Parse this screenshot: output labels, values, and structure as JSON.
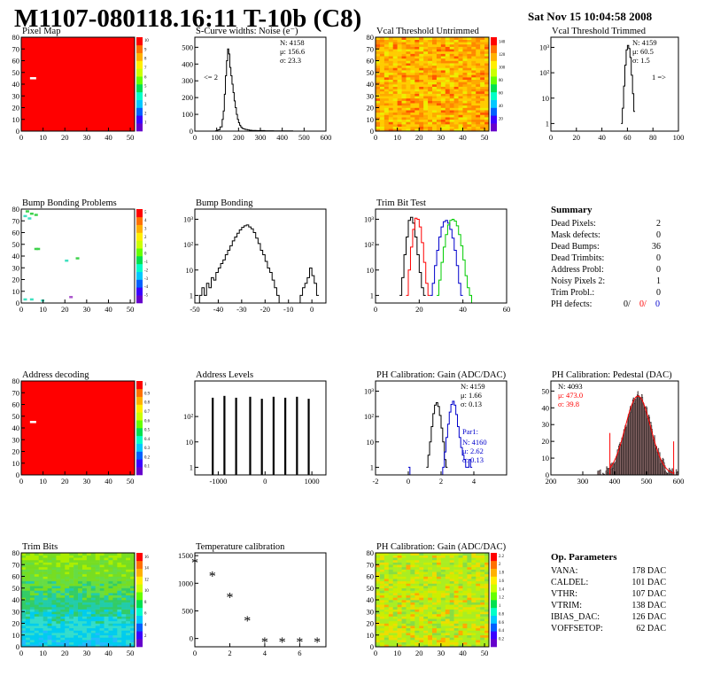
{
  "header": {
    "title": "M1107-080118.16:11 T-10b (C8)",
    "timestamp": "Sat Nov 15 10:04:58 2008"
  },
  "chart_data": [
    {
      "id": "pixel-map",
      "type": "heatmap",
      "title": "Pixel Map",
      "fill": "uniform-red",
      "x_ticks": [
        "0",
        "10",
        "20",
        "30",
        "40",
        "50"
      ],
      "y_ticks": [
        "0",
        "10",
        "20",
        "30",
        "40",
        "50",
        "60",
        "70",
        "80"
      ],
      "xlim": [
        0,
        52
      ],
      "ylim": [
        0,
        80
      ],
      "palette_ticks": [
        "1",
        "2",
        "3",
        "4",
        "5",
        "6",
        "7",
        "8",
        "9",
        "10"
      ],
      "marks": [
        {
          "x": 4,
          "y": 45,
          "color": "white",
          "note": "dead pixel"
        }
      ]
    },
    {
      "id": "scurve-widths",
      "type": "line",
      "title": "S-Curve widths: Noise (e⁻)",
      "x_ticks": [
        "0",
        "100",
        "200",
        "300",
        "400",
        "500",
        "600"
      ],
      "y_ticks": [
        "0",
        "100",
        "200",
        "300",
        "400",
        "500"
      ],
      "xlim": [
        0,
        600
      ],
      "ylim": [
        0,
        560
      ],
      "stats": {
        "N": "N: 4158",
        "mu": "μ: 156.6",
        "sigma": "σ: 23.3"
      },
      "note": "<= 2",
      "x": [
        80,
        95,
        105,
        115,
        125,
        130,
        135,
        140,
        145,
        150,
        155,
        160,
        165,
        170,
        175,
        180,
        185,
        190,
        195,
        200,
        205,
        210,
        215,
        220,
        230,
        240,
        250,
        260,
        270,
        280,
        300,
        320,
        340,
        360,
        380,
        400,
        420,
        450
      ],
      "values": [
        0,
        2,
        8,
        25,
        70,
        120,
        220,
        330,
        420,
        490,
        460,
        380,
        330,
        280,
        230,
        180,
        140,
        100,
        70,
        50,
        35,
        25,
        18,
        14,
        10,
        7,
        5,
        4,
        4,
        3,
        3,
        2,
        2,
        1,
        1,
        1,
        1,
        0
      ]
    },
    {
      "id": "vcal-untrimmed",
      "type": "heatmap",
      "title": "Vcal Threshold Untrimmed",
      "fill": "noisy-yellow-orange",
      "x_ticks": [
        "0",
        "10",
        "20",
        "30",
        "40",
        "50"
      ],
      "y_ticks": [
        "0",
        "10",
        "20",
        "30",
        "40",
        "50",
        "60",
        "70",
        "80"
      ],
      "xlim": [
        0,
        52
      ],
      "ylim": [
        0,
        80
      ],
      "palette_ticks": [
        "20",
        "40",
        "60",
        "80",
        "100",
        "120",
        "140"
      ]
    },
    {
      "id": "vcal-trimmed",
      "type": "line",
      "title": "Vcal Threshold Trimmed",
      "log_y": true,
      "x_ticks": [
        "0",
        "20",
        "40",
        "60",
        "80",
        "100"
      ],
      "y_ticks": [
        "1",
        "10",
        "10²",
        "10³"
      ],
      "xlim": [
        0,
        100
      ],
      "stats": {
        "N": "N: 4159",
        "mu": "μ: 60.5",
        "sigma": "σ:  1.5"
      },
      "note": "1 =>",
      "x": [
        55,
        56,
        57,
        58,
        59,
        60,
        61,
        62,
        63,
        64,
        65,
        66
      ],
      "values": [
        1,
        4,
        30,
        200,
        800,
        1200,
        900,
        400,
        80,
        15,
        3,
        1
      ]
    },
    {
      "id": "bump-problems",
      "type": "heatmap",
      "title": "Bump Bonding Problems",
      "fill": "white-sparse",
      "x_ticks": [
        "0",
        "10",
        "20",
        "30",
        "40",
        "50"
      ],
      "y_ticks": [
        "0",
        "10",
        "20",
        "30",
        "40",
        "50",
        "60",
        "70",
        "80"
      ],
      "xlim": [
        0,
        52
      ],
      "ylim": [
        0,
        80
      ],
      "palette_ticks": [
        "-5",
        "-4",
        "-3",
        "-2",
        "-1",
        "0",
        "1",
        "2",
        "3",
        "4",
        "5"
      ],
      "marks": [
        {
          "x": 2,
          "y": 78,
          "color": "#3fd24d"
        },
        {
          "x": 4,
          "y": 76,
          "color": "#3fd24d"
        },
        {
          "x": 6,
          "y": 75,
          "color": "#3fd24d"
        },
        {
          "x": 3,
          "y": 72,
          "color": "#40e0c0"
        },
        {
          "x": 1,
          "y": 74,
          "color": "#40e0c0"
        },
        {
          "x": 6,
          "y": 46,
          "color": "#3fd24d"
        },
        {
          "x": 7,
          "y": 46,
          "color": "#3fd24d"
        },
        {
          "x": 20,
          "y": 36,
          "color": "#40e0c0"
        },
        {
          "x": 25,
          "y": 38,
          "color": "#3fd24d"
        },
        {
          "x": 1,
          "y": 3,
          "color": "#40e0c0"
        },
        {
          "x": 4,
          "y": 3,
          "color": "#40e0c0"
        },
        {
          "x": 9,
          "y": 2,
          "color": "#40e0c0"
        },
        {
          "x": 22,
          "y": 5,
          "color": "#aa55cc"
        }
      ]
    },
    {
      "id": "bump-bonding",
      "type": "line",
      "title": "Bump Bonding",
      "log_y": true,
      "x_ticks": [
        "-50",
        "-40",
        "-30",
        "-20",
        "-10",
        "0"
      ],
      "y_ticks": [
        "1",
        "10",
        "10²",
        "10³"
      ],
      "xlim": [
        -50,
        6
      ],
      "x": [
        -50,
        -49,
        -48,
        -47,
        -46,
        -45,
        -44,
        -43,
        -42,
        -41,
        -40,
        -39,
        -38,
        -37,
        -36,
        -35,
        -34,
        -33,
        -32,
        -31,
        -30,
        -29,
        -28,
        -27,
        -26,
        -25,
        -24,
        -23,
        -22,
        -21,
        -20,
        -19,
        -18,
        -17,
        -16,
        -15,
        -14,
        -13,
        -12,
        -11,
        -10,
        -9,
        -8,
        -7,
        -6,
        -5,
        -4,
        -3,
        -2,
        -1,
        0,
        1,
        2,
        3
      ],
      "values": [
        0,
        0,
        1,
        2,
        1,
        3,
        2,
        5,
        4,
        8,
        12,
        18,
        25,
        40,
        60,
        90,
        140,
        200,
        280,
        380,
        480,
        550,
        600,
        500,
        420,
        300,
        180,
        110,
        60,
        40,
        22,
        12,
        8,
        4,
        2,
        1,
        0,
        0,
        0,
        0,
        0,
        0,
        0,
        0,
        0,
        1,
        2,
        3,
        5,
        12,
        6,
        3,
        1,
        0
      ]
    },
    {
      "id": "trim-bit-test",
      "type": "line",
      "title": "Trim Bit Test",
      "log_y": true,
      "x_ticks": [
        "0",
        "20",
        "40",
        "60"
      ],
      "y_ticks": [
        "1",
        "10",
        "10²",
        "10³"
      ],
      "xlim": [
        0,
        60
      ],
      "series": [
        {
          "color": "#000000",
          "x": [
            11,
            12,
            13,
            14,
            15,
            16,
            17,
            18,
            19,
            20,
            21,
            22
          ],
          "values": [
            1,
            5,
            40,
            200,
            900,
            1200,
            700,
            200,
            40,
            8,
            2,
            1
          ]
        },
        {
          "color": "#ff0000",
          "x": [
            14,
            15,
            16,
            17,
            18,
            19,
            20,
            21,
            22,
            23,
            24
          ],
          "values": [
            1,
            10,
            80,
            400,
            1100,
            1000,
            500,
            120,
            20,
            3,
            1
          ]
        },
        {
          "color": "#0000cc",
          "x": [
            25,
            26,
            27,
            28,
            29,
            30,
            31,
            32,
            33,
            34,
            35,
            36,
            37,
            38,
            39
          ],
          "values": [
            1,
            3,
            15,
            60,
            200,
            500,
            800,
            900,
            700,
            400,
            180,
            60,
            15,
            3,
            1
          ]
        },
        {
          "color": "#00cc00",
          "x": [
            28,
            29,
            30,
            31,
            32,
            33,
            34,
            35,
            36,
            37,
            38,
            39,
            40,
            41,
            42,
            43,
            44
          ],
          "values": [
            1,
            4,
            20,
            80,
            250,
            600,
            900,
            1000,
            850,
            550,
            250,
            90,
            25,
            6,
            2,
            1,
            0
          ]
        }
      ]
    },
    {
      "id": "address-decoding",
      "type": "heatmap",
      "title": "Address decoding",
      "fill": "uniform-red",
      "x_ticks": [
        "0",
        "10",
        "20",
        "30",
        "40",
        "50"
      ],
      "y_ticks": [
        "0",
        "10",
        "20",
        "30",
        "40",
        "50",
        "60",
        "70",
        "80"
      ],
      "xlim": [
        0,
        52
      ],
      "ylim": [
        0,
        80
      ],
      "palette_ticks": [
        "0.1",
        "0.2",
        "0.3",
        "0.4",
        "0.5",
        "0.6",
        "0.7",
        "0.8",
        "0.9",
        "1"
      ],
      "marks": [
        {
          "x": 4,
          "y": 45,
          "color": "white",
          "note": "dead pixel"
        }
      ]
    },
    {
      "id": "address-levels",
      "type": "bar",
      "title": "Address Levels",
      "log_y": true,
      "x_ticks": [
        "-1000",
        "0",
        "1000"
      ],
      "y_ticks": [
        "1",
        "10",
        "10²"
      ],
      "xlim": [
        -1500,
        1300
      ],
      "spikes": [
        {
          "x": -1120,
          "value": 550
        },
        {
          "x": -870,
          "value": 650
        },
        {
          "x": -620,
          "value": 550
        },
        {
          "x": -320,
          "value": 600
        },
        {
          "x": -70,
          "value": 500
        },
        {
          "x": 180,
          "value": 600
        },
        {
          "x": 430,
          "value": 550
        },
        {
          "x": 680,
          "value": 600
        },
        {
          "x": 930,
          "value": 500
        }
      ]
    },
    {
      "id": "ph-gain",
      "type": "line",
      "title": "PH Calibration: Gain (ADC/DAC)",
      "log_y": true,
      "x_ticks": [
        "-2",
        "0",
        "2",
        "4"
      ],
      "y_ticks": [
        "1",
        "10",
        "10²",
        "10³"
      ],
      "xlim": [
        -2,
        6
      ],
      "stats": {
        "N": "N: 4159",
        "mu": "μ: 1.66",
        "sigma": "σ: 0.13"
      },
      "stats2": {
        "label": "Par1:",
        "N": "N: 4160",
        "mu": "μ: 2.62",
        "sigma": "σ: 0.13"
      },
      "series": [
        {
          "color": "#000000",
          "x": [
            1.1,
            1.2,
            1.3,
            1.4,
            1.5,
            1.6,
            1.7,
            1.8,
            1.9,
            2.0,
            2.1,
            2.2,
            2.3
          ],
          "values": [
            1,
            3,
            10,
            40,
            130,
            280,
            350,
            250,
            110,
            35,
            10,
            2,
            1
          ]
        },
        {
          "color": "#0000cc",
          "x": [
            0,
            0.1,
            2.0,
            2.1,
            2.2,
            2.3,
            2.4,
            2.5,
            2.6,
            2.7,
            2.8,
            2.9,
            3.0,
            3.1,
            3.2,
            3.3,
            3.4,
            3.5,
            3.6,
            3.7,
            3.8
          ],
          "values": [
            1,
            0,
            0,
            1,
            4,
            15,
            50,
            150,
            300,
            400,
            280,
            120,
            40,
            15,
            6,
            3,
            2,
            1,
            1,
            2,
            1
          ]
        }
      ]
    },
    {
      "id": "ph-pedestal",
      "type": "bar",
      "title": "PH Calibration: Pedestal (DAC)",
      "x_ticks": [
        "200",
        "300",
        "400",
        "500",
        "600"
      ],
      "y_ticks": [
        "0",
        "10",
        "20",
        "30",
        "40",
        "50"
      ],
      "xlim": [
        200,
        600
      ],
      "ylim": [
        0,
        56
      ],
      "stats": {
        "N": "N: 4093",
        "mu": "μ: 473.0",
        "sigma": "σ: 39.8"
      },
      "gauss": {
        "mu": 473.0,
        "sigma": 39.8,
        "peak": 47,
        "range": [
          340,
          600
        ]
      },
      "fit_range": [
        385,
        585
      ]
    },
    {
      "id": "trim-bits",
      "type": "heatmap",
      "title": "Trim Bits",
      "fill": "gradient-green-cyan",
      "x_ticks": [
        "0",
        "10",
        "20",
        "30",
        "40",
        "50"
      ],
      "y_ticks": [
        "0",
        "10",
        "20",
        "30",
        "40",
        "50",
        "60",
        "70",
        "80"
      ],
      "xlim": [
        0,
        52
      ],
      "ylim": [
        0,
        80
      ],
      "palette_ticks": [
        "2",
        "4",
        "6",
        "8",
        "10",
        "12",
        "14",
        "16"
      ]
    },
    {
      "id": "temperature-calibration",
      "type": "scatter",
      "title": "Temperature calibration",
      "x_ticks": [
        "0",
        "2",
        "4",
        "6"
      ],
      "y_ticks": [
        "0",
        "500",
        "1000",
        "1500"
      ],
      "xlim": [
        0,
        7.5
      ],
      "ylim": [
        -150,
        1550
      ],
      "x": [
        0,
        1,
        2,
        3,
        4,
        5,
        6,
        7
      ],
      "values": [
        1380,
        1140,
        760,
        330,
        -50,
        -50,
        -50,
        -50
      ]
    },
    {
      "id": "ph-gain-map",
      "type": "heatmap",
      "title": "PH Calibration: Gain (ADC/DAC)",
      "fill": "noisy-green-yellow",
      "x_ticks": [
        "0",
        "10",
        "20",
        "30",
        "40",
        "50"
      ],
      "y_ticks": [
        "0",
        "10",
        "20",
        "30",
        "40",
        "50",
        "60",
        "70",
        "80"
      ],
      "xlim": [
        0,
        52
      ],
      "ylim": [
        0,
        80
      ],
      "palette_ticks": [
        "0.2",
        "0.4",
        "0.6",
        "0.8",
        "1",
        "1.2",
        "1.4",
        "1.6",
        "1.8",
        "2",
        "2.2"
      ]
    }
  ],
  "summary": {
    "title": "Summary",
    "rows": [
      {
        "label": "Dead Pixels:",
        "value": "2"
      },
      {
        "label": "Mask defects:",
        "value": "0"
      },
      {
        "label": "Dead Bumps:",
        "value": "36"
      },
      {
        "label": "Dead Trimbits:",
        "value": "0"
      },
      {
        "label": "Address Probl:",
        "value": "0"
      },
      {
        "label": "Noisy Pixels 2:",
        "value": "1"
      },
      {
        "label": "Trim Probl.:",
        "value": "0"
      }
    ],
    "ph": {
      "label": "PH defects:",
      "v1": "0/",
      "v2": "0/",
      "v3": "0"
    }
  },
  "op_params": {
    "title": "Op. Parameters",
    "rows": [
      {
        "label": "VANA:",
        "value": "178 DAC"
      },
      {
        "label": "CALDEL:",
        "value": "101 DAC"
      },
      {
        "label": "VTHR:",
        "value": "107 DAC"
      },
      {
        "label": "VTRIM:",
        "value": "138 DAC"
      },
      {
        "label": "IBIAS_DAC:",
        "value": "126 DAC"
      },
      {
        "label": "VOFFSETOP:",
        "value": "62 DAC"
      }
    ]
  },
  "colors": {
    "palette": [
      "#6600cc",
      "#3a00ff",
      "#0060ff",
      "#00c8ff",
      "#00ffc8",
      "#00e050",
      "#66ff00",
      "#ccff00",
      "#ffee00",
      "#ffb000",
      "#ff7000",
      "#ff0000"
    ],
    "red": "#ff0000",
    "blue": "#0000cc",
    "green": "#00cc00",
    "black": "#000000"
  }
}
